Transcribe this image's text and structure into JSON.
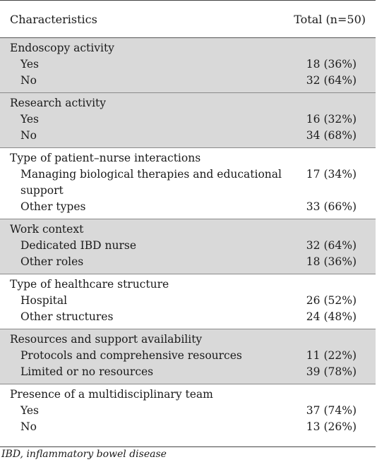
{
  "header": {
    "col1": "Characteristics",
    "col2": "Total (n=50)"
  },
  "groups": [
    {
      "title": "Endoscopy activity",
      "rows": [
        {
          "label": "Yes",
          "value": "18 (36%)"
        },
        {
          "label": "No",
          "value": "32 (64%)"
        }
      ]
    },
    {
      "title": "Research activity",
      "rows": [
        {
          "label": "Yes",
          "value": "16 (32%)"
        },
        {
          "label": "No",
          "value": "34 (68%)"
        }
      ]
    },
    {
      "title": "Type of patient–nurse interactions",
      "rows": [
        {
          "label": "Managing biological therapies and educational support",
          "value": "17 (34%)"
        },
        {
          "label": "Other types",
          "value": "33 (66%)"
        }
      ]
    },
    {
      "title": "Work context",
      "rows": [
        {
          "label": "Dedicated IBD nurse",
          "value": "32 (64%)"
        },
        {
          "label": "Other roles",
          "value": "18 (36%)"
        }
      ]
    },
    {
      "title": "Type of healthcare structure",
      "rows": [
        {
          "label": "Hospital",
          "value": "26 (52%)"
        },
        {
          "label": "Other structures",
          "value": "24 (48%)"
        }
      ]
    },
    {
      "title": "Resources and support availability",
      "rows": [
        {
          "label": "Protocols and comprehensive resources",
          "value": "11 (22%)"
        },
        {
          "label": "Limited or no resources",
          "value": "39 (78%)"
        }
      ]
    },
    {
      "title": "Presence of a multidisciplinary team",
      "rows": [
        {
          "label": "Yes",
          "value": "37 (74%)"
        },
        {
          "label": "No",
          "value": "13 (26%)"
        }
      ]
    }
  ],
  "footnote": "IBD, inflammatory bowel disease",
  "colors": {
    "shade": "#d9d9d9",
    "rule": "#444444"
  }
}
